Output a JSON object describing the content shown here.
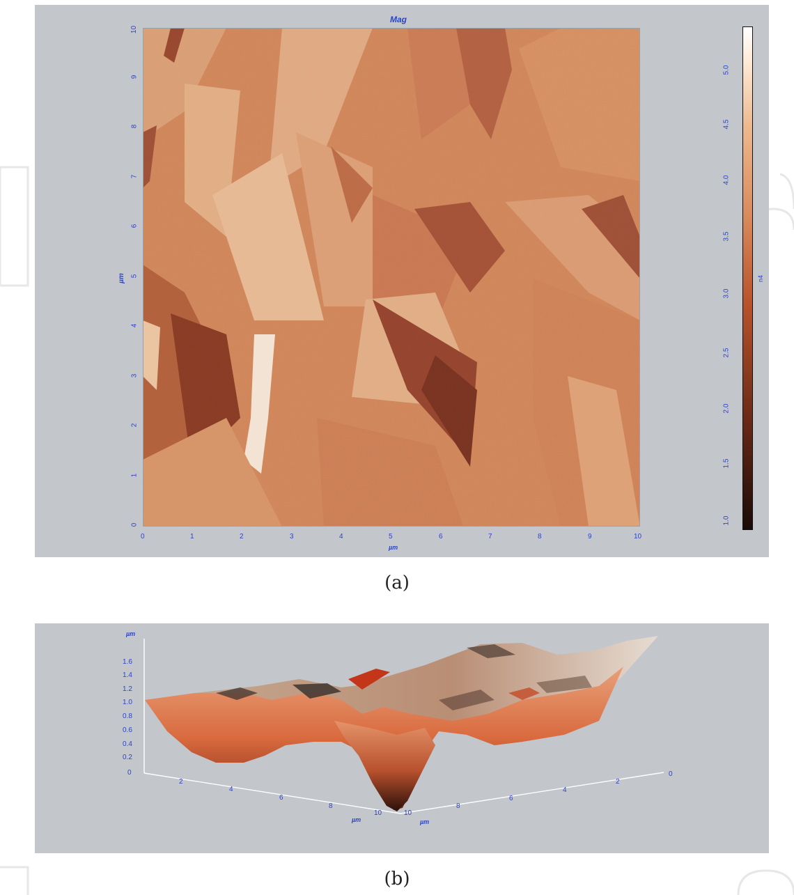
{
  "panel_a": {
    "title": "Mag",
    "x_unit": "µm",
    "y_unit": "µm",
    "x_ticks": [
      "0",
      "1",
      "2",
      "3",
      "4",
      "5",
      "6",
      "7",
      "8",
      "9",
      "10"
    ],
    "y_ticks": [
      "0",
      "1",
      "2",
      "3",
      "4",
      "5",
      "6",
      "7",
      "8",
      "9",
      "10"
    ],
    "colorbar_ticks": [
      "1.0",
      "1.5",
      "2.0",
      "2.5",
      "3.0",
      "3.5",
      "4.0",
      "4.5",
      "5.0"
    ],
    "colorbar_unit": "n4",
    "caption": "(a)"
  },
  "panel_b": {
    "z_unit": "µm",
    "z_ticks": [
      "0",
      "0.2",
      "0.4",
      "0.6",
      "0.8",
      "1.0",
      "1.2",
      "1.4",
      "1.6"
    ],
    "x_left_ticks": [
      "2",
      "4",
      "6",
      "8",
      "10"
    ],
    "x_left_unit": "µm",
    "x_right_ticks": [
      "10",
      "8",
      "6",
      "4",
      "2",
      "0"
    ],
    "x_right_unit": "µm",
    "caption": "(b)"
  },
  "colors": {
    "panel_bg": "#c3c6cb",
    "label_blue": "#2b43c9",
    "surface_base": "#d68b5f"
  }
}
